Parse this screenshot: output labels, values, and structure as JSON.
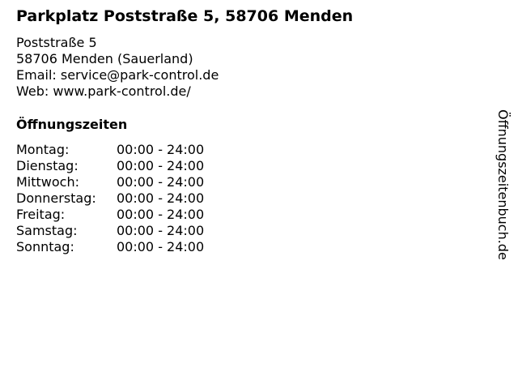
{
  "title": "Parkplatz Poststraße 5, 58706 Menden",
  "address": {
    "street": "Poststraße 5",
    "city": "58706 Menden (Sauerland)",
    "email": "Email: service@park-control.de",
    "web": "Web: www.park-control.de/"
  },
  "hours_heading": "Öffnungszeiten",
  "hours": [
    {
      "day": "Montag:",
      "time": "00:00 - 24:00"
    },
    {
      "day": "Dienstag:",
      "time": "00:00 - 24:00"
    },
    {
      "day": "Mittwoch:",
      "time": "00:00 - 24:00"
    },
    {
      "day": "Donnerstag:",
      "time": "00:00 - 24:00"
    },
    {
      "day": "Freitag:",
      "time": "00:00 - 24:00"
    },
    {
      "day": "Samstag:",
      "time": "00:00 - 24:00"
    },
    {
      "day": "Sonntag:",
      "time": "00:00 - 24:00"
    }
  ],
  "watermark": "Öffnungszeitenbuch.de"
}
